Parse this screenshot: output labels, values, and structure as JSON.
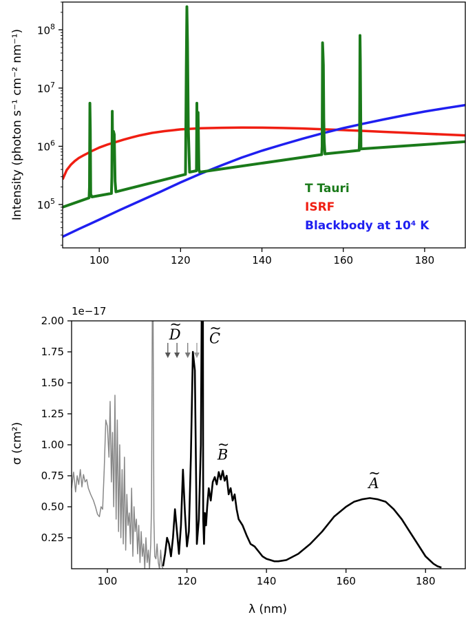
{
  "chart_data": [
    {
      "type": "line",
      "title": "",
      "xlabel": "",
      "ylabel": "Intensity (photon s⁻¹ cm⁻² nm⁻¹)",
      "xlim": [
        91,
        190
      ],
      "ylim": [
        18000,
        300000000
      ],
      "yscale": "log",
      "x_ticks": [
        "100",
        "120",
        "140",
        "160",
        "180"
      ],
      "y_ticks": [
        {
          "base": "10",
          "exp": "5",
          "value": 100000
        },
        {
          "base": "10",
          "exp": "6",
          "value": 1000000
        },
        {
          "base": "10",
          "exp": "7",
          "value": 10000000
        },
        {
          "base": "10",
          "exp": "8",
          "value": 100000000
        }
      ],
      "grid": false,
      "legend_position": "lower-right",
      "series": [
        {
          "name": "T Tauri",
          "color": "#1a7a1a",
          "x": [
            91,
            97.5,
            97.6,
            97.7,
            97.8,
            97.9,
            98.2,
            103,
            103.1,
            103.2,
            103.3,
            103.5,
            103.7,
            103.9,
            104.1,
            121.2,
            121.4,
            121.55,
            121.7,
            121.9,
            122.2,
            123.9,
            124.0,
            124.1,
            124.3,
            124.5,
            124.7,
            154.7,
            154.8,
            154.9,
            155.0,
            155.1,
            155.2,
            155.3,
            155.5,
            163.9,
            164.0,
            164.1,
            164.2,
            164.35,
            190
          ],
          "y": [
            90000,
            130000,
            200000,
            5500000,
            2000000,
            150000,
            135000,
            155000,
            300000,
            4000000,
            800000,
            1800000,
            1600000,
            250000,
            165000,
            330000,
            20000000,
            250000000,
            60000000,
            2000000,
            360000,
            380000,
            5500000,
            500000,
            3800000,
            400000,
            360000,
            720000,
            1000000,
            60000000,
            40000000,
            25000000,
            3000000,
            1200000,
            740000,
            850000,
            1500000,
            80000000,
            30000000,
            900000,
            1200000
          ]
        },
        {
          "name": "ISRF",
          "color": "#f01e12",
          "x": [
            91,
            92,
            93,
            94,
            95,
            96,
            97,
            98,
            100,
            102,
            104,
            106,
            108,
            110,
            113,
            116,
            120,
            125,
            130,
            135,
            140,
            145,
            150,
            155,
            160,
            165,
            170,
            175,
            180,
            185,
            190
          ],
          "y": [
            270000,
            390000,
            480000,
            560000,
            630000,
            690000,
            750000,
            820000,
            950000,
            1070000,
            1180000,
            1300000,
            1420000,
            1540000,
            1700000,
            1820000,
            1950000,
            2040000,
            2080000,
            2100000,
            2090000,
            2060000,
            2020000,
            1960000,
            1900000,
            1840000,
            1770000,
            1710000,
            1650000,
            1590000,
            1540000
          ]
        },
        {
          "name": "Blackbody at 10⁴ K",
          "color": "#1f1ff0",
          "x": [
            91,
            95,
            100,
            105,
            110,
            115,
            120,
            125,
            130,
            135,
            140,
            145,
            150,
            155,
            160,
            165,
            170,
            175,
            180,
            185,
            190
          ],
          "y": [
            28000,
            38000,
            55000,
            80000,
            115000,
            165000,
            240000,
            340000,
            470000,
            640000,
            840000,
            1070000,
            1350000,
            1680000,
            2050000,
            2450000,
            2900000,
            3400000,
            3950000,
            4500000,
            5100000
          ]
        }
      ]
    },
    {
      "type": "line",
      "title": "",
      "xlabel": "λ (nm)",
      "ylabel": "σ (cm²)",
      "xlim": [
        91,
        190
      ],
      "ylim": [
        0,
        2.0
      ],
      "y_multiplier": "1e−17",
      "x_ticks": [
        "100",
        "120",
        "140",
        "160",
        "180"
      ],
      "y_ticks": [
        "0.25",
        "0.50",
        "0.75",
        "1.00",
        "1.25",
        "1.50",
        "1.75",
        "2.00"
      ],
      "grid": false,
      "annotations": {
        "state_labels": [
          {
            "letter": "D",
            "x": 117,
            "y": 1.85
          },
          {
            "letter": "C",
            "x": 127,
            "y": 1.82
          },
          {
            "letter": "B",
            "x": 129,
            "y": 0.88
          },
          {
            "letter": "A",
            "x": 167,
            "y": 0.65
          }
        ],
        "arrow_positions_x": [
          115.2,
          117.5,
          120.2,
          122.5
        ],
        "arrow_colors": [
          "#555555",
          "#555555",
          "#777777",
          "#999999"
        ]
      },
      "series": [
        {
          "name": "",
          "color": "#888888",
          "x": [
            91,
            91.5,
            92,
            92.4,
            92.8,
            93.2,
            93.6,
            94,
            94.4,
            94.8,
            95.2,
            95.8,
            96.5,
            97,
            97.5,
            98,
            98.4,
            98.8,
            99.2,
            99.6,
            100,
            100.4,
            100.7,
            101,
            101.3,
            101.6,
            101.9,
            102.2,
            102.5,
            102.8,
            103.1,
            103.4,
            103.7,
            104,
            104.3,
            104.6,
            104.9,
            105.2,
            105.5,
            105.8,
            106.1,
            106.4,
            106.7,
            107,
            107.3,
            107.6,
            107.9,
            108.2,
            108.5,
            108.8,
            109.1,
            109.4,
            109.7,
            110,
            110.3,
            110.6,
            110.9,
            111.1,
            111.3,
            111.5,
            111.7,
            111.9,
            112.2,
            112.5,
            112.8,
            113.1,
            113.4,
            113.7,
            114
          ],
          "y": [
            0.65,
            0.78,
            0.62,
            0.75,
            0.68,
            0.8,
            0.66,
            0.76,
            0.7,
            0.72,
            0.65,
            0.6,
            0.55,
            0.5,
            0.44,
            0.42,
            0.5,
            0.48,
            0.8,
            1.2,
            1.15,
            0.9,
            1.35,
            0.7,
            1.1,
            0.5,
            1.4,
            0.4,
            1.2,
            0.3,
            1.0,
            0.25,
            0.8,
            0.2,
            0.9,
            0.15,
            0.6,
            0.35,
            0.45,
            0.2,
            0.65,
            0.1,
            0.5,
            0.3,
            0.4,
            0.12,
            0.35,
            0.05,
            0.3,
            0.1,
            0.2,
            0.0,
            0.25,
            0.05,
            0.15,
            0.0,
            0.2,
            0.5,
            2.1,
            2.1,
            0.4,
            0.1,
            0.08,
            0.2,
            0.05,
            0.0,
            0.15,
            0.02,
            0.0
          ]
        },
        {
          "name": "",
          "color": "#000000",
          "x": [
            114,
            114.5,
            115,
            115.5,
            116,
            116.5,
            117,
            117.5,
            118,
            118.5,
            119,
            119.5,
            120,
            120.5,
            121,
            121.5,
            122,
            122.5,
            123,
            123.5,
            123.8,
            124,
            124.1,
            124.3,
            124.5,
            124.8,
            125.1,
            125.5,
            126,
            126.5,
            127,
            127.5,
            128,
            128.5,
            129,
            129.5,
            130,
            130.5,
            131,
            131.5,
            132,
            132.5,
            133,
            134,
            135,
            136,
            137,
            138,
            139,
            140,
            141,
            142,
            143,
            144,
            145,
            148,
            151,
            154,
            157,
            160,
            162,
            164,
            166,
            168,
            170,
            172,
            174,
            176,
            178,
            180,
            182,
            183,
            184
          ],
          "y": [
            0.02,
            0.12,
            0.25,
            0.2,
            0.1,
            0.25,
            0.48,
            0.3,
            0.12,
            0.35,
            0.8,
            0.45,
            0.18,
            0.3,
            0.9,
            1.75,
            1.6,
            0.2,
            0.4,
            1.0,
            2.5,
            2.5,
            0.4,
            0.2,
            0.45,
            0.35,
            0.5,
            0.65,
            0.55,
            0.7,
            0.74,
            0.68,
            0.78,
            0.72,
            0.79,
            0.71,
            0.75,
            0.6,
            0.65,
            0.55,
            0.6,
            0.48,
            0.4,
            0.35,
            0.27,
            0.2,
            0.18,
            0.14,
            0.1,
            0.08,
            0.07,
            0.06,
            0.06,
            0.065,
            0.07,
            0.12,
            0.2,
            0.3,
            0.42,
            0.5,
            0.54,
            0.56,
            0.57,
            0.56,
            0.54,
            0.48,
            0.4,
            0.3,
            0.2,
            0.1,
            0.04,
            0.02,
            0.01
          ]
        }
      ]
    }
  ]
}
